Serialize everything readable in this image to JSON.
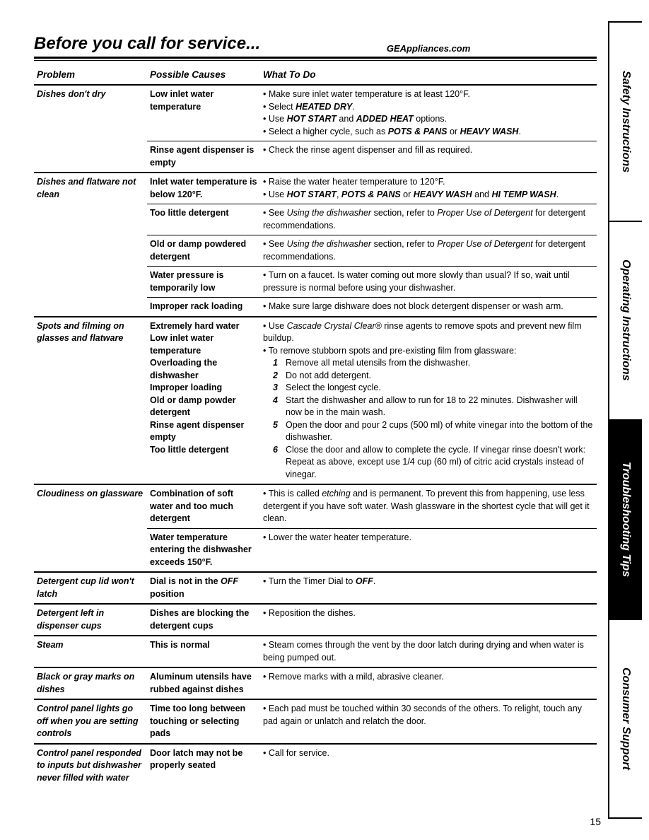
{
  "header": {
    "title": "Before you call for service...",
    "url": "GEAppliances.com"
  },
  "columns": {
    "problem": "Problem",
    "cause": "Possible Causes",
    "fix": "What To Do"
  },
  "tabs": [
    {
      "label": "Safety Instructions",
      "active": false
    },
    {
      "label": "Operating Instructions",
      "active": false
    },
    {
      "label": "Troubleshooting Tips",
      "active": true
    },
    {
      "label": "Consumer Support",
      "active": false
    }
  ],
  "page_number": "15",
  "rows": [
    {
      "problem": "Dishes don't dry",
      "subs": [
        {
          "cause": "Low inlet water temperature",
          "fixes": [
            "• Make sure inlet water temperature is at least 120°F.",
            "• Select <span class='b'>HEATED DRY</span>.",
            "• Use <span class='b'>HOT START</span> and <span class='b'>ADDED HEAT</span> options.",
            "• Select a higher cycle, such as <span class='b'>POTS &amp; PANS</span> or <span class='b'>HEAVY WASH</span>."
          ]
        },
        {
          "cause": "Rinse agent dispenser is empty",
          "fixes": [
            "• Check the rinse agent dispenser and fill as required."
          ]
        }
      ]
    },
    {
      "problem": "Dishes and flatware not clean",
      "subs": [
        {
          "cause": "Inlet water temperature is below 120°F.",
          "fixes": [
            "• Raise the water heater temperature to 120°F.",
            "• Use <span class='b'>HOT START</span>, <span class='b'>POTS &amp; PANS</span> or <span class='b'>HEAVY WASH</span> and <span class='b'>HI TEMP WASH</span>."
          ]
        },
        {
          "cause": "Too little detergent",
          "fixes": [
            "• See <span class='i'>Using the dishwasher</span> section, refer to <span class='i'>Proper Use of Detergent</span> for detergent recommendations."
          ]
        },
        {
          "cause": "Old or damp powdered detergent",
          "fixes": [
            "• See <span class='i'>Using the dishwasher</span> section, refer to <span class='i'>Proper Use of Detergent</span> for detergent recommendations."
          ]
        },
        {
          "cause": "Water pressure is temporarily low",
          "fixes": [
            "• Turn on a faucet. Is water coming out more slowly than usual? If so, wait until pressure is normal before using your dishwasher."
          ]
        },
        {
          "cause": "Improper rack loading",
          "fixes": [
            "• Make sure large dishware does not block detergent dispenser or wash arm."
          ]
        }
      ]
    },
    {
      "problem": "Spots and filming on glasses and flatware",
      "subs": [
        {
          "cause": "Extremely hard water<br>Low inlet water temperature<br>Overloading the dishwasher<br>Improper loading<br>Old or damp powder detergent<br>Rinse agent dispenser empty<br>Too little detergent",
          "fixes": [
            "• Use <span class='i'>Cascade Crystal Clear®</span> rinse agents to remove spots and prevent new film buildup.",
            "• To remove stubborn spots and pre-existing film from glassware:",
            "<div class='numstep'><span class='n'>1</span><span>Remove all metal utensils from the dishwasher.</span></div>",
            "<div class='numstep'><span class='n'>2</span><span>Do not add detergent.</span></div>",
            "<div class='numstep'><span class='n'>3</span><span>Select the longest cycle.</span></div>",
            "<div class='numstep'><span class='n'>4</span><span>Start the dishwasher and allow to run for 18 to 22 minutes. Dishwasher will now be in the main wash.</span></div>",
            "<div class='numstep'><span class='n'>5</span><span>Open the door and pour 2 cups (500 ml) of white vinegar into the bottom of the dishwasher.</span></div>",
            "<div class='numstep'><span class='n'>6</span><span>Close the door and allow to complete the cycle. If vinegar rinse doesn't work: Repeat as above, except use 1/4 cup (60 ml) of citric acid crystals instead of vinegar.</span></div>"
          ]
        }
      ]
    },
    {
      "problem": "Cloudiness on glassware",
      "subs": [
        {
          "cause": "Combination of soft water and too much detergent",
          "fixes": [
            "• This is called <span class='i'>etching</span> and is permanent. To prevent this from happening, use less detergent if you have soft water. Wash glassware in the shortest cycle that will get it clean."
          ]
        },
        {
          "cause": "Water temperature entering the dishwasher exceeds 150°F.",
          "fixes": [
            "• Lower the water heater temperature."
          ]
        }
      ]
    },
    {
      "problem": "Detergent cup lid won't latch",
      "subs": [
        {
          "cause": "Dial is not in the <span class='i'>OFF</span> position",
          "fixes": [
            "• Turn the Timer Dial to <span class='b'>OFF</span>."
          ]
        }
      ]
    },
    {
      "problem": "Detergent left in dispenser cups",
      "subs": [
        {
          "cause": "Dishes are blocking the detergent cups",
          "fixes": [
            "• Reposition the dishes."
          ]
        }
      ]
    },
    {
      "problem": "Steam",
      "subs": [
        {
          "cause": "This is normal",
          "fixes": [
            "• Steam comes through the vent by the door latch during drying and when water is being pumped out."
          ]
        }
      ]
    },
    {
      "problem": "Black or gray marks on dishes",
      "subs": [
        {
          "cause": "Aluminum utensils have rubbed against dishes",
          "fixes": [
            "• Remove marks with a mild, abrasive cleaner."
          ]
        }
      ]
    },
    {
      "problem": "Control panel lights go off when you are setting controls",
      "subs": [
        {
          "cause": "Time too long between touching or selecting pads",
          "fixes": [
            "• Each pad must be touched within 30 seconds of the others. To relight, touch any pad again or unlatch and relatch the door."
          ]
        }
      ]
    },
    {
      "problem": "Control panel responded to inputs but dishwasher never filled with water",
      "subs": [
        {
          "cause": "Door latch may not be properly seated",
          "fixes": [
            "• Call for service."
          ]
        }
      ]
    }
  ]
}
